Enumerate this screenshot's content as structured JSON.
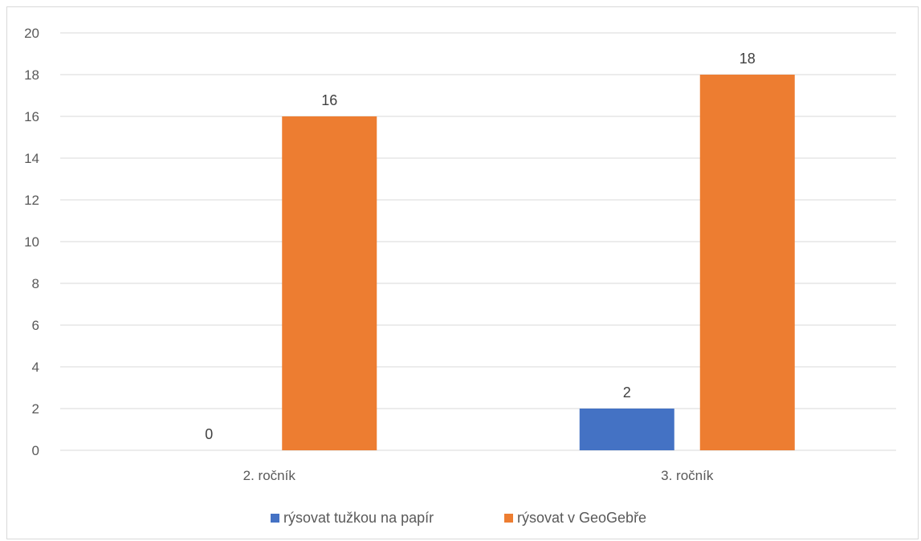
{
  "chart_data": {
    "type": "bar",
    "categories": [
      "2. ročník",
      "3. ročník"
    ],
    "series": [
      {
        "name": "rýsovat tužkou  na papír",
        "values": [
          0,
          2
        ],
        "color": "#4472c4"
      },
      {
        "name": "rýsovat v GeoGebře",
        "values": [
          16,
          18
        ],
        "color": "#ed7d31"
      }
    ],
    "ylim": [
      0,
      20
    ],
    "yticks": [
      0,
      2,
      4,
      6,
      8,
      10,
      12,
      14,
      16,
      18,
      20
    ],
    "grid": true,
    "legend_position": "bottom",
    "data_labels": true,
    "title": "",
    "xlabel": "",
    "ylabel": ""
  }
}
